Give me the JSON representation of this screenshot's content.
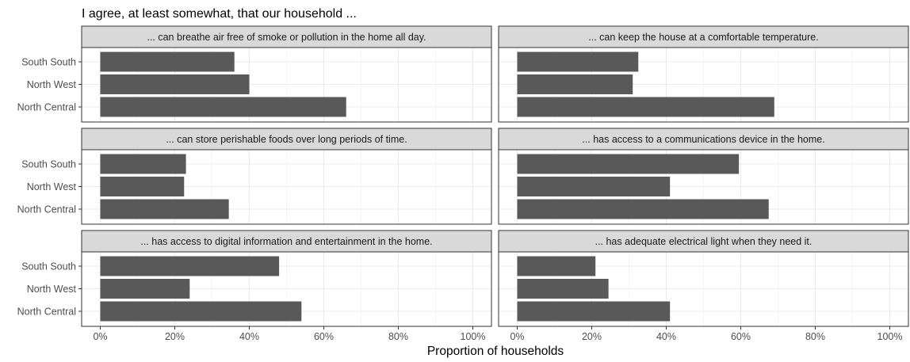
{
  "chart_data": {
    "type": "bar",
    "orientation": "horizontal",
    "title": "I agree, at least somewhat, that our household ...",
    "xlabel": "Proportion of households",
    "ylabel": "",
    "xlim": [
      0,
      1
    ],
    "x_ticks": [
      0,
      0.2,
      0.4,
      0.6,
      0.8,
      1.0
    ],
    "x_tick_labels": [
      "0%",
      "20%",
      "40%",
      "60%",
      "80%",
      "100%"
    ],
    "categories": [
      "South South",
      "North West",
      "North Central"
    ],
    "bar_color": "#595959",
    "strip_color": "#d9d9d9",
    "grid": true,
    "facets": [
      {
        "label": "... can breathe air free of smoke or pollution in the home all day.",
        "values": [
          0.36,
          0.4,
          0.66
        ]
      },
      {
        "label": "... can keep the house at a comfortable temperature.",
        "values": [
          0.325,
          0.31,
          0.69
        ]
      },
      {
        "label": "... can store perishable foods over long periods of time.",
        "values": [
          0.23,
          0.225,
          0.345
        ]
      },
      {
        "label": "... has access to a communications device in the home.",
        "values": [
          0.595,
          0.41,
          0.675
        ]
      },
      {
        "label": "... has access to digital information and entertainment in the home.",
        "values": [
          0.48,
          0.24,
          0.54
        ]
      },
      {
        "label": "... has adequate electrical light when they need it.",
        "values": [
          0.21,
          0.245,
          0.41
        ]
      }
    ]
  }
}
